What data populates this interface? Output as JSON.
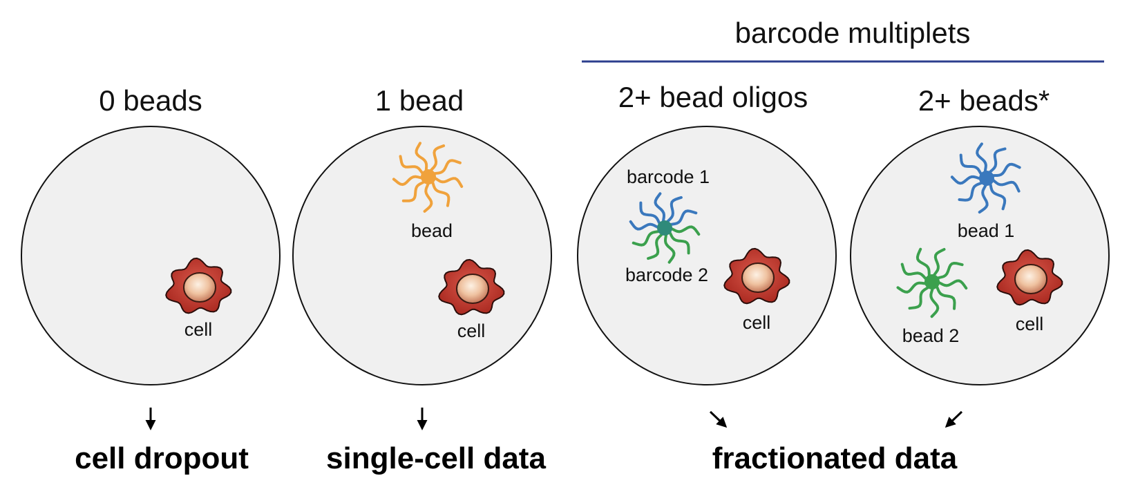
{
  "header": {
    "group_label": "barcode multiplets",
    "group_line_color": "#2b3e8e"
  },
  "panels": [
    {
      "title": "0 beads",
      "labels": {
        "cell": "cell"
      }
    },
    {
      "title": "1 bead",
      "labels": {
        "bead": "bead",
        "cell": "cell"
      }
    },
    {
      "title": "2+ bead oligos",
      "labels": {
        "barcode1": "barcode 1",
        "barcode2": "barcode 2",
        "cell": "cell"
      }
    },
    {
      "title": "2+ beads*",
      "labels": {
        "bead1": "bead 1",
        "bead2": "bead 2",
        "cell": "cell"
      }
    }
  ],
  "outcomes": {
    "dropout": "cell dropout",
    "single": "single-cell data",
    "fractionated": "fractionated data"
  },
  "colors": {
    "droplet_fill": "#f0f0f0",
    "bead_orange": "#f0a23c",
    "bead_blue": "#3a78bd",
    "bead_green": "#3ba04d",
    "cell_body": "#c0392b",
    "cell_nucleus": "#f2c9a8"
  },
  "icons": [
    "droplet-circle",
    "bead-icon",
    "cell-icon",
    "arrow-icon"
  ]
}
